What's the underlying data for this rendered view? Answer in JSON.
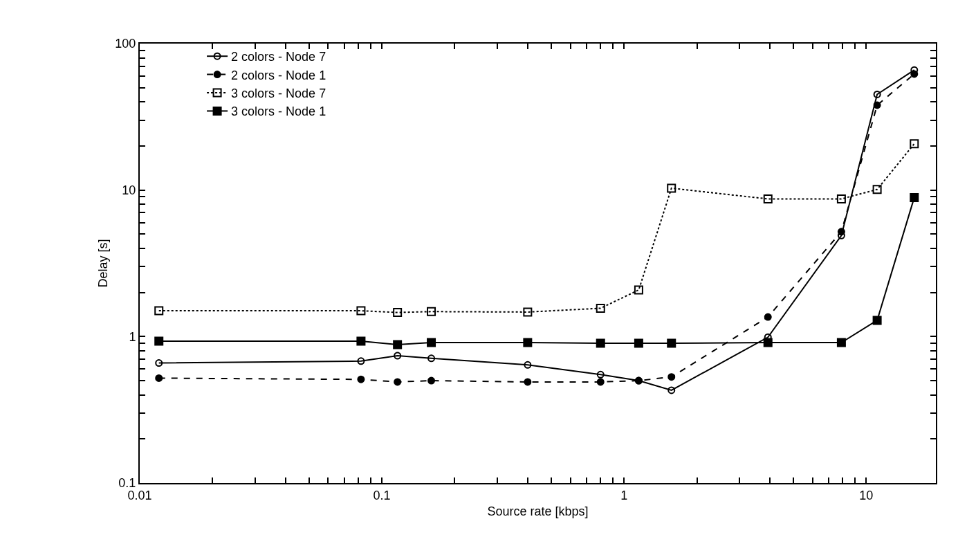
{
  "chart_data": {
    "type": "line",
    "xlabel": "Source rate [kbps]",
    "ylabel": "Delay [s]",
    "log": "xy",
    "grid": false,
    "legend": "top left",
    "xlim": [
      0.01,
      19.4
    ],
    "ylim": [
      0.1,
      100
    ],
    "xticks": [
      0.01,
      {
        "value": 0.02,
        "label": null
      },
      {
        "value": 0.03,
        "label": null
      },
      {
        "value": 0.04,
        "label": null
      },
      {
        "value": 0.05,
        "label": null
      },
      {
        "value": 0.06,
        "label": null
      },
      {
        "value": 0.07,
        "label": null
      },
      {
        "value": 0.08,
        "label": null
      },
      {
        "value": 0.09,
        "label": null
      },
      0.1,
      {
        "value": 0.2,
        "label": null
      },
      {
        "value": 0.3,
        "label": null
      },
      {
        "value": 0.4,
        "label": null
      },
      {
        "value": 0.5,
        "label": null
      },
      {
        "value": 0.6,
        "label": null
      },
      {
        "value": 0.7,
        "label": null
      },
      {
        "value": 0.8,
        "label": null
      },
      {
        "value": 0.9,
        "label": null
      },
      1,
      {
        "value": 2,
        "label": null
      },
      {
        "value": 3,
        "label": null
      },
      {
        "value": 4,
        "label": null
      },
      {
        "value": 5,
        "label": null
      },
      {
        "value": 6,
        "label": null
      },
      {
        "value": 7,
        "label": null
      },
      {
        "value": 8,
        "label": null
      },
      {
        "value": 9,
        "label": null
      },
      10
    ],
    "yticks": [
      0.1,
      {
        "value": 0.2,
        "label": null
      },
      {
        "value": 0.3,
        "label": null
      },
      {
        "value": 0.4,
        "label": null
      },
      {
        "value": 0.5,
        "label": null
      },
      {
        "value": 0.6,
        "label": null
      },
      {
        "value": 0.7,
        "label": null
      },
      {
        "value": 0.8,
        "label": null
      },
      {
        "value": 0.9,
        "label": null
      },
      1,
      {
        "value": 2,
        "label": null
      },
      {
        "value": 3,
        "label": null
      },
      {
        "value": 4,
        "label": null
      },
      {
        "value": 5,
        "label": null
      },
      {
        "value": 6,
        "label": null
      },
      {
        "value": 7,
        "label": null
      },
      {
        "value": 8,
        "label": null
      },
      {
        "value": 9,
        "label": null
      },
      10,
      {
        "value": 20,
        "label": null
      },
      {
        "value": 30,
        "label": null
      },
      {
        "value": 40,
        "label": null
      },
      {
        "value": 50,
        "label": null
      },
      {
        "value": 60,
        "label": null
      },
      {
        "value": 70,
        "label": null
      },
      {
        "value": 80,
        "label": null
      },
      {
        "value": 90,
        "label": null
      },
      100
    ],
    "x": [
      0.012,
      0.082,
      0.116,
      0.16,
      0.4,
      0.8,
      1.15,
      1.57,
      3.93,
      7.9,
      11.1,
      15.8
    ],
    "series": [
      {
        "name": "2 colors - Node 7",
        "color": "#000000",
        "line_style": "solid",
        "marker": "circle-open",
        "values": [
          0.66,
          0.68,
          0.74,
          0.71,
          0.64,
          0.55,
          0.5,
          0.43,
          0.99,
          4.9,
          45,
          66
        ]
      },
      {
        "name": "2 colors - Node 1",
        "color": "#000000",
        "line_style": "dashed",
        "marker": "circle",
        "values": [
          0.52,
          0.51,
          0.49,
          0.5,
          0.49,
          0.49,
          0.5,
          0.53,
          1.36,
          5.2,
          38,
          62
        ]
      },
      {
        "name": "3 colors - Node 7",
        "color": "#000000",
        "line_style": "dotted",
        "marker": "square-open",
        "values": [
          1.5,
          1.5,
          1.46,
          1.48,
          1.47,
          1.56,
          2.08,
          10.3,
          8.7,
          8.7,
          10.1,
          20.7
        ]
      },
      {
        "name": "3 colors - Node 1",
        "color": "#000000",
        "line_style": "solid",
        "marker": "square",
        "values": [
          0.93,
          0.93,
          0.88,
          0.91,
          0.91,
          0.9,
          0.9,
          0.9,
          0.91,
          0.91,
          1.29,
          8.9
        ]
      }
    ]
  }
}
